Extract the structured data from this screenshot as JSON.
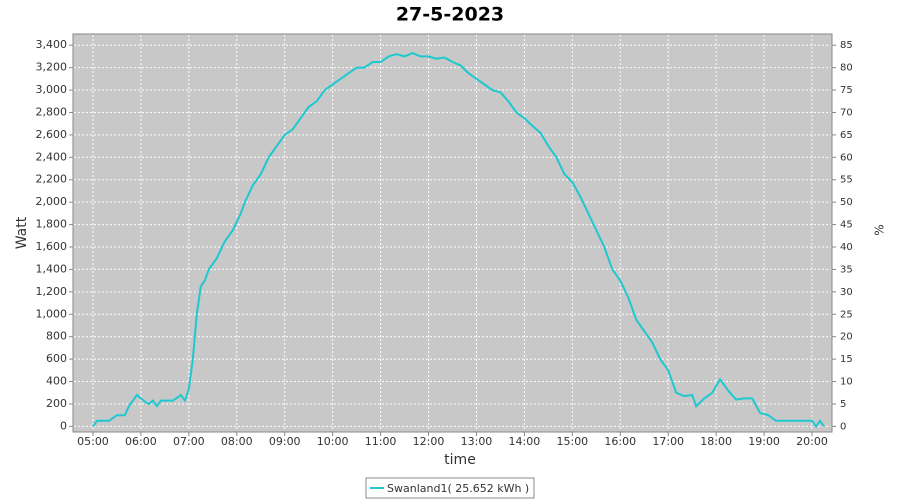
{
  "chart_data": {
    "type": "line",
    "title": "27-5-2023",
    "x_label": "time",
    "y_label": "Watt",
    "y2_label": "%",
    "x": [
      "05:00",
      "05:05",
      "05:20",
      "05:30",
      "05:40",
      "05:45",
      "05:55",
      "06:05",
      "06:10",
      "06:15",
      "06:20",
      "06:25",
      "06:40",
      "06:50",
      "06:55",
      "07:00",
      "07:05",
      "07:10",
      "07:15",
      "07:20",
      "07:25",
      "07:35",
      "07:45",
      "07:55",
      "08:05",
      "08:10",
      "08:20",
      "08:30",
      "08:40",
      "08:50",
      "09:00",
      "09:10",
      "09:20",
      "09:30",
      "09:40",
      "09:50",
      "10:00",
      "10:10",
      "10:20",
      "10:30",
      "10:40",
      "10:50",
      "11:00",
      "11:10",
      "11:20",
      "11:30",
      "11:40",
      "11:50",
      "12:00",
      "12:10",
      "12:20",
      "12:30",
      "12:40",
      "12:50",
      "13:00",
      "13:10",
      "13:20",
      "13:30",
      "13:40",
      "13:50",
      "14:00",
      "14:10",
      "14:20",
      "14:30",
      "14:40",
      "14:50",
      "15:00",
      "15:10",
      "15:20",
      "15:30",
      "15:40",
      "15:50",
      "16:00",
      "16:10",
      "16:20",
      "16:30",
      "16:40",
      "16:50",
      "17:00",
      "17:10",
      "17:20",
      "17:30",
      "17:35",
      "17:45",
      "17:55",
      "18:05",
      "18:15",
      "18:25",
      "18:35",
      "18:45",
      "18:55",
      "19:05",
      "19:15",
      "19:30",
      "19:50",
      "20:00",
      "20:05",
      "20:10",
      "20:15"
    ],
    "series": [
      {
        "name": "Swanland1( 25.652 kWh )",
        "color": "#1ec8d0",
        "values": [
          0,
          50,
          50,
          100,
          100,
          180,
          280,
          220,
          200,
          230,
          180,
          230,
          230,
          280,
          230,
          330,
          600,
          1000,
          1250,
          1300,
          1400,
          1500,
          1650,
          1750,
          1900,
          2000,
          2150,
          2250,
          2400,
          2500,
          2600,
          2650,
          2750,
          2850,
          2900,
          3000,
          3050,
          3100,
          3150,
          3200,
          3200,
          3250,
          3250,
          3300,
          3320,
          3300,
          3330,
          3300,
          3300,
          3280,
          3290,
          3250,
          3220,
          3150,
          3100,
          3050,
          3000,
          2980,
          2900,
          2800,
          2750,
          2680,
          2620,
          2500,
          2400,
          2250,
          2180,
          2050,
          1900,
          1750,
          1600,
          1400,
          1300,
          1150,
          950,
          850,
          750,
          600,
          500,
          300,
          270,
          280,
          180,
          250,
          300,
          420,
          320,
          240,
          250,
          250,
          120,
          100,
          50,
          50,
          50,
          50,
          0,
          50,
          0
        ]
      }
    ],
    "xlim": [
      "04:35",
      "20:25"
    ],
    "xticks": [
      "05:00",
      "06:00",
      "07:00",
      "08:00",
      "09:00",
      "10:00",
      "11:00",
      "12:00",
      "13:00",
      "14:00",
      "15:00",
      "16:00",
      "17:00",
      "18:00",
      "19:00",
      "20:00"
    ],
    "ylim": [
      -50,
      3500
    ],
    "yticks": [
      0,
      200,
      400,
      600,
      800,
      {
        "value": 1000,
        "label": "1,000"
      },
      {
        "value": 1200,
        "label": "1,200"
      },
      {
        "value": 1400,
        "label": "1,400"
      },
      {
        "value": 1600,
        "label": "1,600"
      },
      {
        "value": 1800,
        "label": "1,800"
      },
      {
        "value": 2000,
        "label": "2,000"
      },
      {
        "value": 2200,
        "label": "2,200"
      },
      {
        "value": 2400,
        "label": "2,400"
      },
      {
        "value": 2600,
        "label": "2,600"
      },
      {
        "value": 2800,
        "label": "2,800"
      },
      {
        "value": 3000,
        "label": "3,000"
      },
      {
        "value": 3200,
        "label": "3,200"
      },
      {
        "value": 3400,
        "label": "3,400"
      }
    ],
    "y2lim": [
      -1.25,
      87.5
    ],
    "y2ticks": [
      0,
      5,
      10,
      15,
      20,
      25,
      30,
      35,
      40,
      45,
      50,
      55,
      60,
      65,
      70,
      75,
      80,
      85
    ],
    "grid": true
  }
}
